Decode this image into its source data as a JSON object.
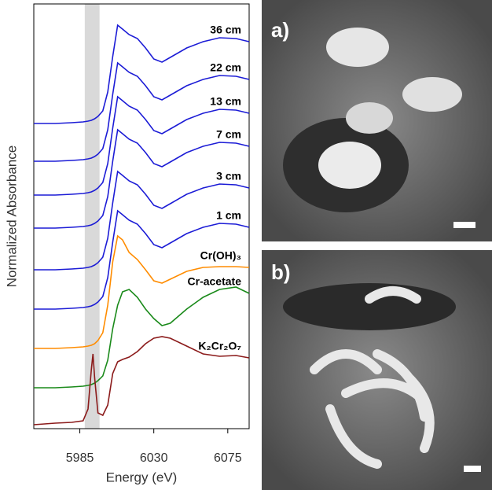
{
  "chart_data": {
    "type": "line",
    "x_label": "Energy (eV)",
    "y_label": "Normalized Absorbance",
    "x": [
      5957,
      5970,
      5980,
      5987,
      5990,
      5992,
      5993,
      5994,
      5996,
      5999,
      6002,
      6005,
      6008,
      6011,
      6015,
      6020,
      6025,
      6030,
      6035,
      6040,
      6050,
      6060,
      6070,
      6080,
      6088
    ],
    "xlim": [
      5957,
      6088
    ],
    "xticks": [
      5985,
      6030,
      6075
    ],
    "ylim": [
      0,
      54
    ],
    "highlight": [
      5988,
      5997
    ],
    "series": [
      {
        "name": "36 cm",
        "color": "#1c1cd6",
        "values": [
          38.8,
          38.8,
          38.9,
          39.0,
          39.1,
          39.2,
          39.3,
          39.4,
          39.7,
          40.4,
          42.8,
          47.3,
          51.3,
          50.8,
          50.1,
          49.6,
          48.4,
          47.0,
          46.6,
          47.2,
          48.4,
          49.2,
          49.7,
          49.6,
          49.2
        ]
      },
      {
        "name": "22 cm",
        "color": "#1c1cd6",
        "values": [
          34.0,
          34.0,
          34.1,
          34.2,
          34.3,
          34.4,
          34.5,
          34.6,
          34.9,
          35.6,
          38.0,
          42.5,
          46.5,
          46.0,
          45.3,
          44.8,
          43.6,
          42.2,
          41.8,
          42.4,
          43.6,
          44.4,
          44.9,
          44.8,
          44.4
        ]
      },
      {
        "name": "13 cm",
        "color": "#1c1cd6",
        "values": [
          29.7,
          29.7,
          29.8,
          29.9,
          30.0,
          30.1,
          30.2,
          30.3,
          30.6,
          31.3,
          33.7,
          38.2,
          42.2,
          41.7,
          41.0,
          40.5,
          39.3,
          37.9,
          37.5,
          38.1,
          39.3,
          40.1,
          40.6,
          40.5,
          40.1
        ]
      },
      {
        "name": "7 cm",
        "color": "#1c1cd6",
        "values": [
          25.5,
          25.5,
          25.6,
          25.7,
          25.8,
          25.9,
          26.0,
          26.1,
          26.4,
          27.1,
          29.5,
          34.0,
          38.0,
          37.5,
          36.8,
          36.3,
          35.1,
          33.7,
          33.3,
          33.9,
          35.1,
          35.9,
          36.4,
          36.3,
          35.9
        ]
      },
      {
        "name": "3 cm",
        "color": "#1c1cd6",
        "values": [
          20.2,
          20.2,
          20.3,
          20.4,
          20.5,
          20.6,
          20.7,
          20.8,
          21.1,
          21.8,
          24.2,
          28.7,
          32.7,
          32.2,
          31.5,
          31.0,
          29.8,
          28.4,
          28.0,
          28.6,
          29.8,
          30.6,
          31.1,
          31.0,
          30.6
        ]
      },
      {
        "name": "1 cm",
        "color": "#1c1cd6",
        "values": [
          15.2,
          15.2,
          15.3,
          15.4,
          15.5,
          15.6,
          15.7,
          15.8,
          16.1,
          16.8,
          19.2,
          23.7,
          27.7,
          27.2,
          26.5,
          26.0,
          24.8,
          23.4,
          23.0,
          23.6,
          24.8,
          25.6,
          26.1,
          26.0,
          25.6
        ]
      },
      {
        "name": "Cr(OH)₃",
        "color": "#ff8c00",
        "values": [
          10.2,
          10.2,
          10.3,
          10.4,
          10.5,
          10.6,
          10.7,
          10.8,
          11.2,
          12.2,
          15.7,
          21.2,
          24.5,
          24.0,
          22.4,
          21.5,
          20.2,
          18.8,
          18.5,
          19.0,
          20.0,
          20.5,
          20.6,
          20.6,
          20.5
        ]
      },
      {
        "name": "Cr-acetate",
        "color": "#1a8a1a",
        "values": [
          5.2,
          5.2,
          5.3,
          5.4,
          5.5,
          5.6,
          5.7,
          5.8,
          6.1,
          6.7,
          8.7,
          12.7,
          15.7,
          17.4,
          17.7,
          16.7,
          15.2,
          14.0,
          13.1,
          13.4,
          15.2,
          16.7,
          17.7,
          18.0,
          17.2
        ]
      },
      {
        "name": "K₂Cr₂O₇",
        "color": "#8b1a1a",
        "values": [
          0.5,
          0.7,
          0.8,
          1.0,
          2.5,
          7.5,
          9.5,
          6.5,
          2.0,
          1.7,
          3.0,
          7.0,
          8.5,
          8.8,
          9.1,
          9.8,
          10.8,
          11.5,
          11.7,
          11.5,
          10.5,
          9.5,
          9.2,
          9.3,
          9.0
        ]
      }
    ]
  },
  "panels": [
    {
      "label": "a)"
    },
    {
      "label": "b)"
    }
  ]
}
